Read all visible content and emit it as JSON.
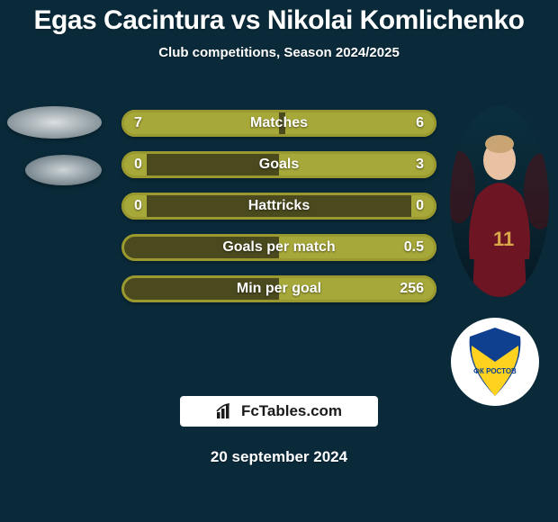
{
  "background_color": "#0a2a3a",
  "title": {
    "text": "Egas Cacintura vs Nikolai Komlichenko",
    "color": "#ffffff",
    "fontsize": 30
  },
  "subtitle": {
    "text": "Club competitions, Season 2024/2025",
    "color": "#ffffff",
    "fontsize": 15
  },
  "bars": {
    "track_color": "#4b4a1e",
    "border_color": "#9a9930",
    "border_width": 3,
    "fill_left_color": "#a7a83a",
    "fill_right_color": "#a7a83a",
    "label_color": "#ffffff",
    "label_fontsize": 16,
    "value_color": "#ffffff",
    "value_fontsize": 16,
    "rows": [
      {
        "label": "Matches",
        "left": "7",
        "right": "6",
        "left_pct": 50,
        "right_pct": 48
      },
      {
        "label": "Goals",
        "left": "0",
        "right": "3",
        "left_pct": 8,
        "right_pct": 50
      },
      {
        "label": "Hattricks",
        "left": "0",
        "right": "0",
        "left_pct": 8,
        "right_pct": 8
      },
      {
        "label": "Goals per match",
        "left": "",
        "right": "0.5",
        "left_pct": 0,
        "right_pct": 50
      },
      {
        "label": "Min per goal",
        "left": "",
        "right": "256",
        "left_pct": 0,
        "right_pct": 50
      }
    ]
  },
  "player_right_photo": {
    "bg_gradient_top": "#0b2f3e",
    "bg_gradient_bottom": "#061a24",
    "jersey_color": "#6d1523",
    "skin_color": "#e8c2a3",
    "number": "11",
    "number_color": "#d9a84a"
  },
  "club_badge": {
    "ring_color": "#ffffff",
    "shield_top": "#0f3f8f",
    "shield_bottom": "#ffd21f",
    "text": "ФК РОСТОВ",
    "text_color": "#0f3f8f"
  },
  "site_badge": {
    "bg_color": "#ffffff",
    "text": "FcTables.com",
    "text_color": "#1a1a1a",
    "icon_color": "#1a1a1a",
    "fontsize": 17
  },
  "date": {
    "text": "20 september 2024",
    "color": "#ffffff",
    "fontsize": 17
  }
}
